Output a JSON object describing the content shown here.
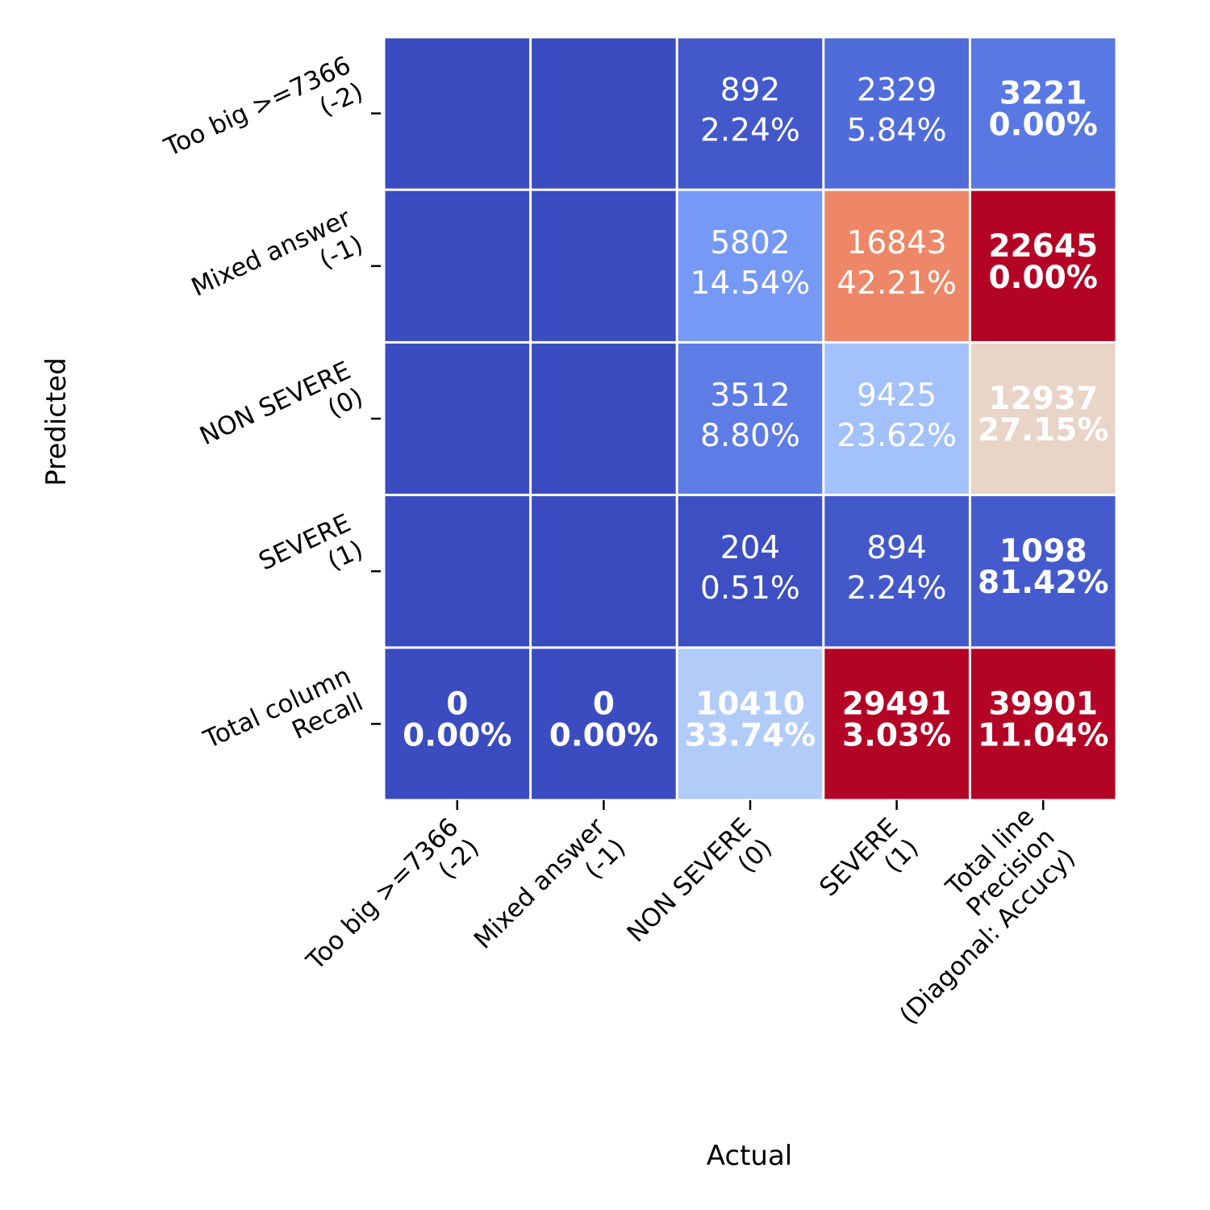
{
  "chart_data": {
    "type": "heatmap",
    "colormap": "coolwarm",
    "xlabel": "Actual",
    "ylabel": "Predicted",
    "x_categories": [
      [
        "Too big >=7366",
        "(-2)"
      ],
      [
        "Mixed answer",
        "(-1)"
      ],
      [
        "NON SEVERE",
        "(0)"
      ],
      [
        "SEVERE",
        "(1)"
      ],
      [
        "Total line",
        "Precision",
        "(Diagonal: Accucy)"
      ]
    ],
    "y_categories": [
      [
        "Too big >=7366",
        "(-2)"
      ],
      [
        "Mixed answer",
        "(-1)"
      ],
      [
        "NON SEVERE",
        "(0)"
      ],
      [
        "SEVERE",
        "(1)"
      ],
      [
        "Total column",
        "Recall"
      ]
    ],
    "color_values": [
      [
        0,
        0,
        892,
        2329,
        3221
      ],
      [
        0,
        0,
        5802,
        16843,
        22645
      ],
      [
        0,
        0,
        3512,
        9425,
        12937
      ],
      [
        0,
        0,
        204,
        894,
        1098
      ],
      [
        0,
        0,
        10410,
        29491,
        39901
      ]
    ],
    "color_range": [
      0,
      20000
    ],
    "cells": [
      [
        {
          "count": "",
          "pct": "",
          "bold": false
        },
        {
          "count": "",
          "pct": "",
          "bold": false
        },
        {
          "count": "892",
          "pct": "2.24%",
          "bold": false
        },
        {
          "count": "2329",
          "pct": "5.84%",
          "bold": false
        },
        {
          "count": "3221",
          "pct": "0.00%",
          "bold": true
        }
      ],
      [
        {
          "count": "",
          "pct": "",
          "bold": false
        },
        {
          "count": "",
          "pct": "",
          "bold": false
        },
        {
          "count": "5802",
          "pct": "14.54%",
          "bold": false
        },
        {
          "count": "16843",
          "pct": "42.21%",
          "bold": false
        },
        {
          "count": "22645",
          "pct": "0.00%",
          "bold": true
        }
      ],
      [
        {
          "count": "",
          "pct": "",
          "bold": false
        },
        {
          "count": "",
          "pct": "",
          "bold": false
        },
        {
          "count": "3512",
          "pct": "8.80%",
          "bold": false
        },
        {
          "count": "9425",
          "pct": "23.62%",
          "bold": false
        },
        {
          "count": "12937",
          "pct": "27.15%",
          "bold": true
        }
      ],
      [
        {
          "count": "",
          "pct": "",
          "bold": false
        },
        {
          "count": "",
          "pct": "",
          "bold": false
        },
        {
          "count": "204",
          "pct": "0.51%",
          "bold": false
        },
        {
          "count": "894",
          "pct": "2.24%",
          "bold": false
        },
        {
          "count": "1098",
          "pct": "81.42%",
          "bold": true
        }
      ],
      [
        {
          "count": "0",
          "pct": "0.00%",
          "bold": true
        },
        {
          "count": "0",
          "pct": "0.00%",
          "bold": true
        },
        {
          "count": "10410",
          "pct": "33.74%",
          "bold": true
        },
        {
          "count": "29491",
          "pct": "3.03%",
          "bold": true
        },
        {
          "count": "39901",
          "pct": "11.04%",
          "bold": true
        }
      ]
    ],
    "grid": false,
    "legend": "none"
  }
}
